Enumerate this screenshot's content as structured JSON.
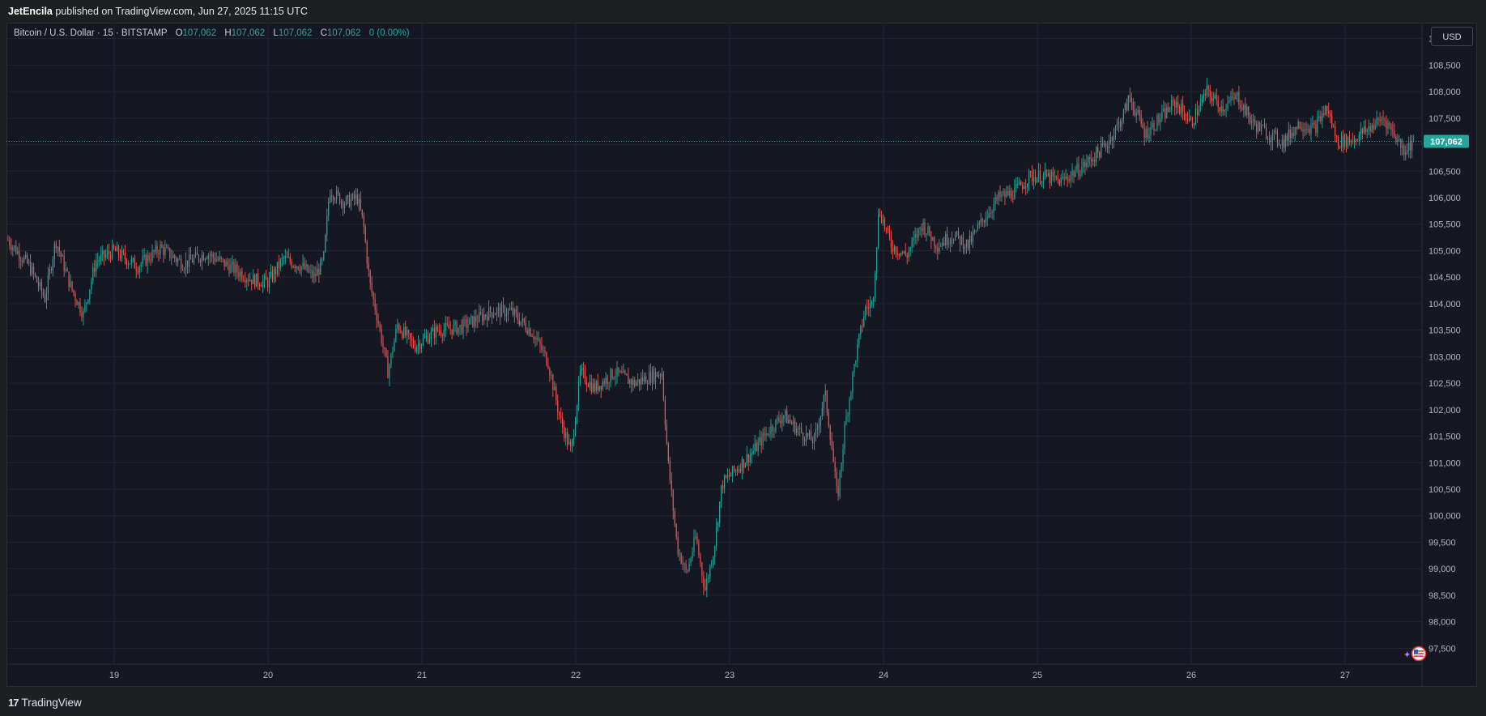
{
  "publish": {
    "author": "JetEncila",
    "rest": "published on TradingView.com, Jun 27, 2025 11:15 UTC"
  },
  "legend": {
    "symbol": "Bitcoin / U.S. Dollar · 15 · BITSTAMP",
    "o_label": "O",
    "o_value": "107,062",
    "h_label": "H",
    "h_value": "107,062",
    "l_label": "L",
    "l_value": "107,062",
    "c_label": "C",
    "c_value": "107,062",
    "change": "0 (0.00%)"
  },
  "currency": "USD",
  "footer": {
    "brand": "TradingView"
  },
  "colors": {
    "up": "#26a69a",
    "down": "#ef5350",
    "grid": "#222633",
    "axis_text": "#b2b5be",
    "price_tag": "#26a69a"
  },
  "chart_data": {
    "type": "candlestick",
    "interval_minutes": 15,
    "xlim_day": [
      18.3,
      27.5
    ],
    "ylim": [
      97200,
      109300
    ],
    "x_ticks": [
      {
        "day": 19,
        "label": "19"
      },
      {
        "day": 20,
        "label": "20"
      },
      {
        "day": 21,
        "label": "21"
      },
      {
        "day": 22,
        "label": "22"
      },
      {
        "day": 23,
        "label": "23"
      },
      {
        "day": 24,
        "label": "24"
      },
      {
        "day": 25,
        "label": "25"
      },
      {
        "day": 26,
        "label": "26"
      },
      {
        "day": 27,
        "label": "27"
      }
    ],
    "y_ticks": [
      {
        "value": 97500,
        "label": "97,500"
      },
      {
        "value": 98000,
        "label": "98,000"
      },
      {
        "value": 98500,
        "label": "98,500"
      },
      {
        "value": 99000,
        "label": "99,000"
      },
      {
        "value": 99500,
        "label": "99,500"
      },
      {
        "value": 100000,
        "label": "100,000"
      },
      {
        "value": 100500,
        "label": "100,500"
      },
      {
        "value": 101000,
        "label": "101,000"
      },
      {
        "value": 101500,
        "label": "101,500"
      },
      {
        "value": 102000,
        "label": "102,000"
      },
      {
        "value": 102500,
        "label": "102,500"
      },
      {
        "value": 103000,
        "label": "103,000"
      },
      {
        "value": 103500,
        "label": "103,500"
      },
      {
        "value": 104000,
        "label": "104,000"
      },
      {
        "value": 104500,
        "label": "104,500"
      },
      {
        "value": 105000,
        "label": "105,000"
      },
      {
        "value": 105500,
        "label": "105,500"
      },
      {
        "value": 106000,
        "label": "106,000"
      },
      {
        "value": 106500,
        "label": "106,500"
      },
      {
        "value": 107000,
        "label": "107,000"
      },
      {
        "value": 107500,
        "label": "107,500"
      },
      {
        "value": 108000,
        "label": "108,000"
      },
      {
        "value": 108500,
        "label": "108,500"
      },
      {
        "value": 109000,
        "label": "109,000"
      }
    ],
    "last_price": {
      "value": 107062,
      "label": "107,062"
    },
    "price_path": [
      [
        18.31,
        105200
      ],
      [
        18.45,
        104700
      ],
      [
        18.55,
        104100
      ],
      [
        18.62,
        105200
      ],
      [
        18.72,
        104300
      ],
      [
        18.8,
        103800
      ],
      [
        18.88,
        104800
      ],
      [
        19.0,
        105000
      ],
      [
        19.15,
        104700
      ],
      [
        19.3,
        105050
      ],
      [
        19.45,
        104750
      ],
      [
        19.6,
        104950
      ],
      [
        19.75,
        104700
      ],
      [
        19.9,
        104450
      ],
      [
        20.0,
        104400
      ],
      [
        20.1,
        104850
      ],
      [
        20.22,
        104700
      ],
      [
        20.3,
        104500
      ],
      [
        20.36,
        104800
      ],
      [
        20.4,
        106150
      ],
      [
        20.5,
        105900
      ],
      [
        20.58,
        106000
      ],
      [
        20.62,
        105500
      ],
      [
        20.66,
        104400
      ],
      [
        20.72,
        103600
      ],
      [
        20.78,
        102700
      ],
      [
        20.84,
        103600
      ],
      [
        20.95,
        103200
      ],
      [
        21.1,
        103500
      ],
      [
        21.25,
        103550
      ],
      [
        21.45,
        103850
      ],
      [
        21.58,
        103850
      ],
      [
        21.72,
        103450
      ],
      [
        21.82,
        102900
      ],
      [
        21.9,
        101800
      ],
      [
        21.97,
        101200
      ],
      [
        22.03,
        102700
      ],
      [
        22.12,
        102400
      ],
      [
        22.25,
        102700
      ],
      [
        22.38,
        102500
      ],
      [
        22.5,
        102650
      ],
      [
        22.56,
        102700
      ],
      [
        22.6,
        101000
      ],
      [
        22.66,
        99400
      ],
      [
        22.72,
        98900
      ],
      [
        22.78,
        99600
      ],
      [
        22.84,
        98600
      ],
      [
        22.9,
        99400
      ],
      [
        22.95,
        100600
      ],
      [
        23.05,
        100900
      ],
      [
        23.15,
        101200
      ],
      [
        23.25,
        101600
      ],
      [
        23.35,
        101900
      ],
      [
        23.45,
        101600
      ],
      [
        23.55,
        101400
      ],
      [
        23.62,
        102300
      ],
      [
        23.66,
        101400
      ],
      [
        23.7,
        100300
      ],
      [
        23.75,
        101700
      ],
      [
        23.82,
        103000
      ],
      [
        23.88,
        103900
      ],
      [
        23.93,
        104000
      ],
      [
        23.97,
        105800
      ],
      [
        24.05,
        105100
      ],
      [
        24.15,
        104900
      ],
      [
        24.25,
        105500
      ],
      [
        24.35,
        105100
      ],
      [
        24.45,
        105300
      ],
      [
        24.55,
        105100
      ],
      [
        24.65,
        105600
      ],
      [
        24.75,
        106000
      ],
      [
        24.85,
        106100
      ],
      [
        24.95,
        106400
      ],
      [
        25.05,
        106400
      ],
      [
        25.15,
        106300
      ],
      [
        25.3,
        106600
      ],
      [
        25.45,
        107000
      ],
      [
        25.55,
        107500
      ],
      [
        25.6,
        107900
      ],
      [
        25.7,
        107200
      ],
      [
        25.8,
        107500
      ],
      [
        25.9,
        107800
      ],
      [
        26.0,
        107400
      ],
      [
        26.1,
        108000
      ],
      [
        26.2,
        107700
      ],
      [
        26.3,
        107900
      ],
      [
        26.4,
        107400
      ],
      [
        26.5,
        107200
      ],
      [
        26.6,
        107050
      ],
      [
        26.7,
        107400
      ],
      [
        26.8,
        107300
      ],
      [
        26.88,
        107700
      ],
      [
        26.95,
        107050
      ],
      [
        27.05,
        107100
      ],
      [
        27.15,
        107300
      ],
      [
        27.25,
        107500
      ],
      [
        27.32,
        107200
      ],
      [
        27.38,
        106900
      ],
      [
        27.45,
        107062
      ]
    ]
  }
}
